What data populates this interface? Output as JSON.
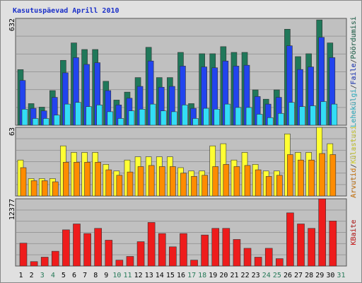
{
  "chart_data": [
    {
      "type": "bar",
      "title": "Kasutuspäevad Aprill 2010",
      "legend_separator": "/",
      "categories": [
        "1",
        "2",
        "3",
        "4",
        "5",
        "6",
        "7",
        "8",
        "9",
        "10",
        "11",
        "12",
        "13",
        "14",
        "15",
        "16",
        "17",
        "18",
        "19",
        "20",
        "21",
        "22",
        "23",
        "24",
        "25",
        "26",
        "27",
        "28",
        "29",
        "30",
        "31"
      ],
      "label_colors": [
        "#000000",
        "#000000",
        "#267a58",
        "#267a58",
        "#000000",
        "#000000",
        "#000000",
        "#000000",
        "#000000",
        "#267a58",
        "#267a58",
        "#000000",
        "#000000",
        "#000000",
        "#000000",
        "#000000",
        "#267a58",
        "#267a58",
        "#000000",
        "#000000",
        "#000000",
        "#000000",
        "#000000",
        "#267a58",
        "#267a58",
        "#000000",
        "#000000",
        "#000000",
        "#000000",
        "#000000",
        "#267a58"
      ],
      "ylim": [
        0,
        632
      ],
      "yticks": [
        632
      ],
      "series": [
        {
          "name": "Pöördumisi",
          "color": "#20785a",
          "values": [
            329,
            128,
            107,
            205,
            384,
            487,
            448,
            448,
            260,
            149,
            196,
            282,
            461,
            282,
            282,
            431,
            128,
            423,
            423,
            465,
            431,
            431,
            209,
            154,
            209,
            568,
            406,
            423,
            623,
            487,
            0
          ]
        },
        {
          "name": "Faile",
          "color": "#2244ee",
          "values": [
            265,
            100,
            85,
            165,
            310,
            400,
            360,
            370,
            205,
            120,
            160,
            230,
            380,
            225,
            230,
            350,
            100,
            345,
            340,
            380,
            350,
            355,
            170,
            125,
            165,
            470,
            330,
            345,
            520,
            400,
            0
          ]
        },
        {
          "name": "Lehekülgi",
          "color": "#33ddf5",
          "values": [
            95,
            40,
            40,
            60,
            125,
            135,
            110,
            120,
            80,
            40,
            85,
            95,
            125,
            85,
            80,
            120,
            40,
            100,
            95,
            125,
            105,
            105,
            65,
            45,
            70,
            135,
            110,
            115,
            140,
            125,
            0
          ]
        }
      ]
    },
    {
      "type": "bar",
      "ylim": [
        0,
        63
      ],
      "yticks": [
        63
      ],
      "series": [
        {
          "name": "Külastusi",
          "color": "#ffff33",
          "values": [
            33,
            16,
            16,
            16,
            46,
            40,
            40,
            40,
            29,
            23,
            33,
            36,
            36,
            36,
            36,
            26,
            23,
            23,
            46,
            48,
            33,
            40,
            29,
            23,
            23,
            57,
            40,
            40,
            63,
            48,
            0
          ]
        },
        {
          "name": "Arvutid",
          "color": "#ff8c00",
          "values": [
            26,
            14,
            14,
            13,
            31,
            31,
            31,
            31,
            24,
            19,
            22,
            27,
            28,
            27,
            27,
            21,
            18,
            19,
            27,
            29,
            27,
            28,
            24,
            18,
            19,
            38,
            33,
            33,
            39,
            38,
            0
          ]
        }
      ]
    },
    {
      "type": "bar",
      "ylim": [
        0,
        12377
      ],
      "yticks": [
        12377
      ],
      "series": [
        {
          "name": "KBaite",
          "color": "#ee1c1c",
          "values": [
            4216,
            816,
            1632,
            2720,
            6664,
            7752,
            5984,
            6936,
            4760,
            1088,
            1768,
            4488,
            8024,
            5984,
            3536,
            5984,
            1088,
            5712,
            6936,
            6936,
            4896,
            3264,
            1632,
            3264,
            1360,
            9792,
            7752,
            6936,
            12377,
            8296,
            0
          ]
        }
      ]
    }
  ]
}
